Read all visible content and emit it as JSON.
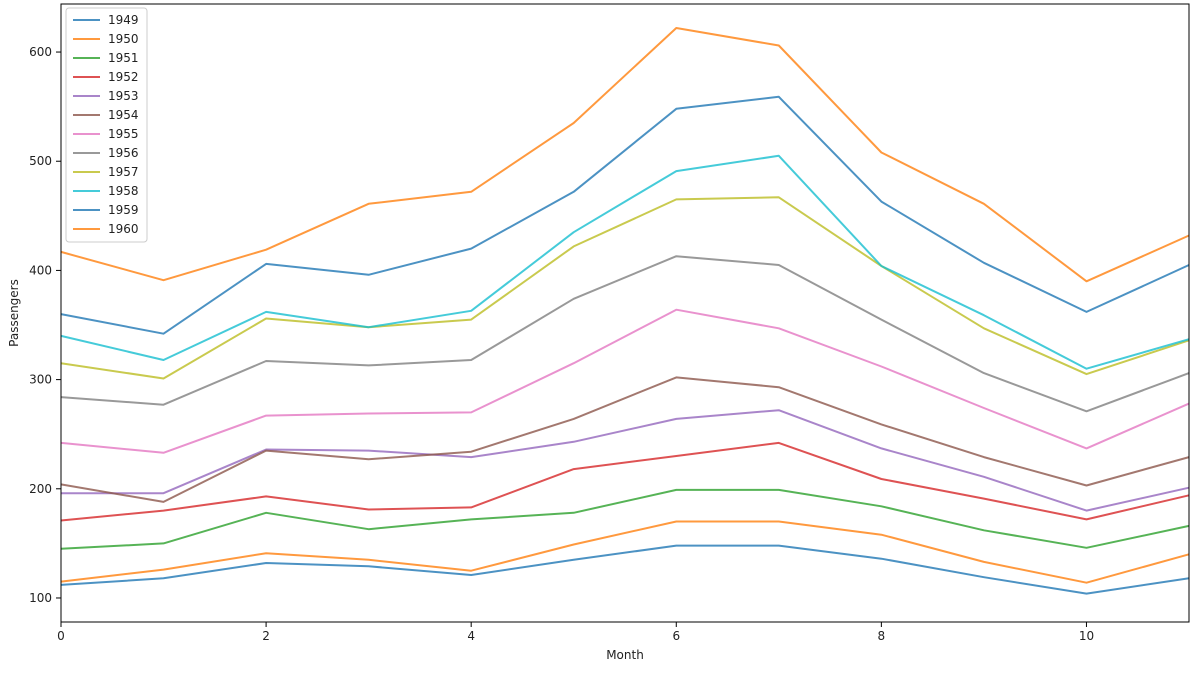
{
  "chart_data": {
    "type": "line",
    "xlabel": "Month",
    "ylabel": "Passengers",
    "xlim": [
      0,
      11
    ],
    "ylim": [
      78,
      644
    ],
    "x_ticks": [
      0,
      2,
      4,
      6,
      8,
      10
    ],
    "y_ticks": [
      100,
      200,
      300,
      400,
      500,
      600
    ],
    "grid": false,
    "legend_position": "top-left",
    "x": [
      0,
      1,
      2,
      3,
      4,
      5,
      6,
      7,
      8,
      9,
      10,
      11
    ],
    "series": [
      {
        "name": "1949",
        "color": "#1f77b4",
        "values": [
          112,
          118,
          132,
          129,
          121,
          135,
          148,
          148,
          136,
          119,
          104,
          118
        ]
      },
      {
        "name": "1950",
        "color": "#ff7f0e",
        "values": [
          115,
          126,
          141,
          135,
          125,
          149,
          170,
          170,
          158,
          133,
          114,
          140
        ]
      },
      {
        "name": "1951",
        "color": "#2ca02c",
        "values": [
          145,
          150,
          178,
          163,
          172,
          178,
          199,
          199,
          184,
          162,
          146,
          166
        ]
      },
      {
        "name": "1952",
        "color": "#d62728",
        "values": [
          171,
          180,
          193,
          181,
          183,
          218,
          230,
          242,
          209,
          191,
          172,
          194
        ]
      },
      {
        "name": "1953",
        "color": "#9467bd",
        "values": [
          196,
          196,
          236,
          235,
          229,
          243,
          264,
          272,
          237,
          211,
          180,
          201
        ]
      },
      {
        "name": "1954",
        "color": "#8c564b",
        "values": [
          204,
          188,
          235,
          227,
          234,
          264,
          302,
          293,
          259,
          229,
          203,
          229
        ]
      },
      {
        "name": "1955",
        "color": "#e377c2",
        "values": [
          242,
          233,
          267,
          269,
          270,
          315,
          364,
          347,
          312,
          274,
          237,
          278
        ]
      },
      {
        "name": "1956",
        "color": "#7f7f7f",
        "values": [
          284,
          277,
          317,
          313,
          318,
          374,
          413,
          405,
          355,
          306,
          271,
          306
        ]
      },
      {
        "name": "1957",
        "color": "#bcbd22",
        "values": [
          315,
          301,
          356,
          348,
          355,
          422,
          465,
          467,
          404,
          347,
          305,
          336
        ]
      },
      {
        "name": "1958",
        "color": "#17becf",
        "values": [
          340,
          318,
          362,
          348,
          363,
          435,
          491,
          505,
          404,
          359,
          310,
          337
        ]
      },
      {
        "name": "1959",
        "color": "#1f77b4",
        "values": [
          360,
          342,
          406,
          396,
          420,
          472,
          548,
          559,
          463,
          407,
          362,
          405
        ]
      },
      {
        "name": "1960",
        "color": "#ff7f0e",
        "values": [
          417,
          391,
          419,
          461,
          472,
          535,
          622,
          606,
          508,
          461,
          390,
          432
        ]
      }
    ]
  }
}
